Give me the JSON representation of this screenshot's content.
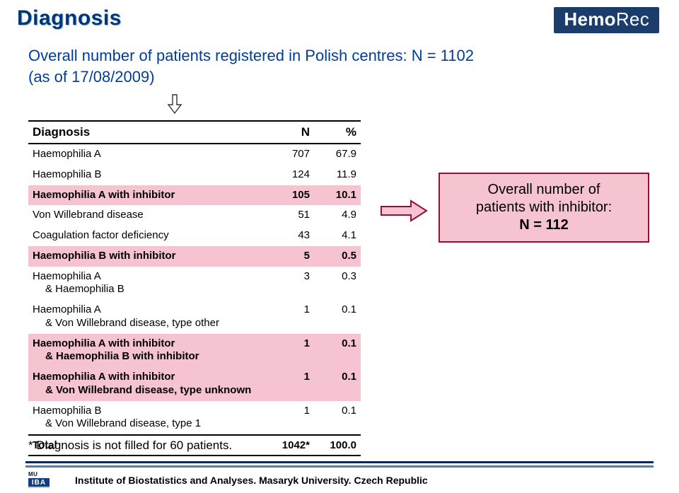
{
  "title": "Diagnosis",
  "brand_parts": {
    "left": "Hemo",
    "right": "Rec"
  },
  "intro_line1": "Overall number of patients registered in Polish centres: N = 1102",
  "intro_line2": "(as of 17/08/2009)",
  "table": {
    "head": {
      "label": "Diagnosis",
      "n": "N",
      "pct": "%"
    },
    "rows": [
      {
        "label": "Haemophilia A",
        "n": "707",
        "pct": "67.9",
        "hl": false
      },
      {
        "label": "Haemophilia B",
        "n": "124",
        "pct": "11.9",
        "hl": false
      },
      {
        "label": "Haemophilia A with inhibitor",
        "n": "105",
        "pct": "10.1",
        "hl": true
      },
      {
        "label": "Von Willebrand disease",
        "n": "51",
        "pct": "4.9",
        "hl": false
      },
      {
        "label": "Coagulation factor deficiency",
        "n": "43",
        "pct": "4.1",
        "hl": false
      },
      {
        "label": "Haemophilia B with inhibitor",
        "n": "5",
        "pct": "0.5",
        "hl": true
      },
      {
        "label": "Haemophilia A\n   & Haemophilia B",
        "n": "3",
        "pct": "0.3",
        "hl": false
      },
      {
        "label": "Haemophilia A\n   & Von Willebrand disease, type other",
        "n": "1",
        "pct": "0.1",
        "hl": false
      },
      {
        "label": "Haemophilia A with inhibitor\n   & Haemophilia B with inhibitor",
        "n": "1",
        "pct": "0.1",
        "hl": true
      },
      {
        "label": "Haemophilia A with inhibitor\n   & Von Willebrand disease, type unknown",
        "n": "1",
        "pct": "0.1",
        "hl": true
      },
      {
        "label": "Haemophilia B\n   & Von Willebrand disease, type 1",
        "n": "1",
        "pct": "0.1",
        "hl": false
      }
    ],
    "total": {
      "label": "Total",
      "n": "1042*",
      "pct": "100.0"
    }
  },
  "footnote": "* Diagnosis is not filled for 60 patients.",
  "callout_line1": "Overall number of",
  "callout_line2": "patients with inhibitor:",
  "callout_strong": "N = 112",
  "footer": "Institute of Biostatistics and Analyses. Masaryk University. Czech Republic",
  "logo_mu": "MU",
  "logo_iba": "IBA",
  "colors": {
    "title": "#003876",
    "brand_bg": "#1a3d6b",
    "intro": "#003e9b",
    "hl_bg": "#f6c3d0",
    "callout_border": "#94103a",
    "rule_dark": "#0a2a55",
    "rule_light": "#5f7ca3"
  }
}
